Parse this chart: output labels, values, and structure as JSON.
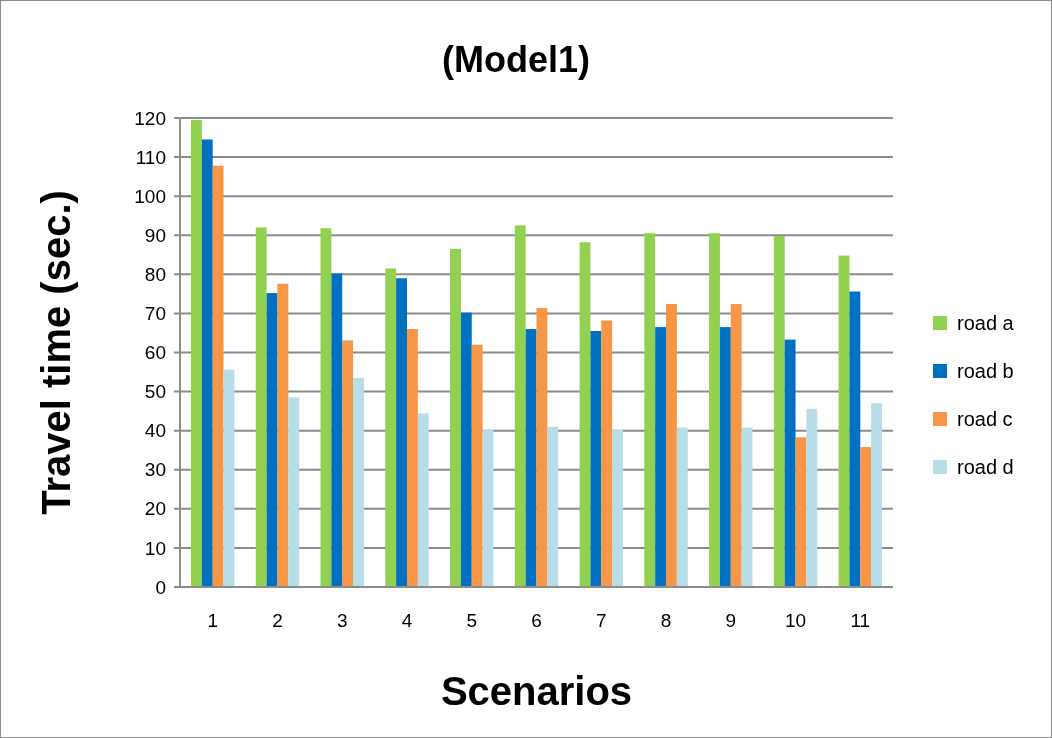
{
  "chart_data": {
    "type": "bar",
    "title": "(Model1)",
    "xlabel": "Scenarios",
    "ylabel": "Travel time (sec.)",
    "categories": [
      "1",
      "2",
      "3",
      "4",
      "5",
      "6",
      "7",
      "8",
      "9",
      "10",
      "11"
    ],
    "series": [
      {
        "name": "road a",
        "color": "#92d050",
        "values": [
          119.5,
          92,
          91.8,
          81.5,
          86.5,
          92.5,
          88.2,
          90.5,
          90.5,
          89.8,
          84.8
        ]
      },
      {
        "name": "road b",
        "color": "#0070c0",
        "values": [
          114.5,
          75.2,
          80.2,
          79,
          70.2,
          66,
          65.5,
          66.5,
          66.5,
          63.3,
          75.6
        ]
      },
      {
        "name": "road c",
        "color": "#f79646",
        "values": [
          107.8,
          77.6,
          63.1,
          66,
          62,
          71.4,
          68.2,
          72.4,
          72.4,
          38.3,
          35.8
        ]
      },
      {
        "name": "road d",
        "color": "#b7dde8",
        "values": [
          55.6,
          48.5,
          53.5,
          44.4,
          40.3,
          41,
          40.3,
          40.8,
          40.8,
          45.6,
          47
        ]
      }
    ],
    "ylim": [
      0,
      120
    ],
    "yticks": [
      0,
      10,
      20,
      30,
      40,
      50,
      60,
      70,
      80,
      90,
      100,
      110,
      120
    ],
    "grid": "y",
    "legend": "right"
  }
}
